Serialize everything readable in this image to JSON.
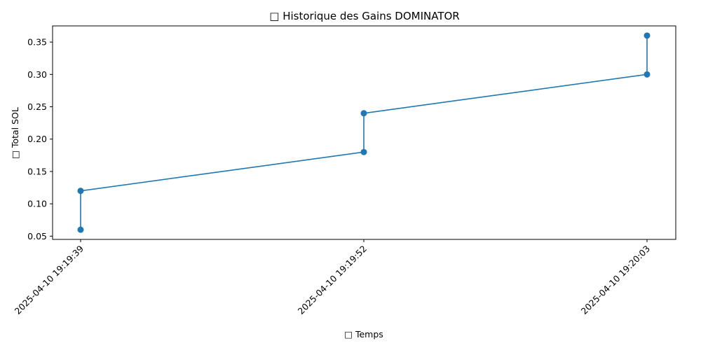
{
  "chart_data": {
    "type": "line",
    "title": "□ Historique des Gains DOMINATOR",
    "xlabel": "□ Temps",
    "ylabel": "□ Total SOL",
    "x_categories": [
      "2025-04-10 19:19:39",
      "2025-04-10 19:19:52",
      "2025-04-10 19:20:03"
    ],
    "series": [
      {
        "color": "#1f77b4",
        "marker": "circle",
        "points": [
          {
            "x": "2025-04-10 19:19:39",
            "y": 0.06
          },
          {
            "x": "2025-04-10 19:19:39",
            "y": 0.12
          },
          {
            "x": "2025-04-10 19:19:52",
            "y": 0.18
          },
          {
            "x": "2025-04-10 19:19:52",
            "y": 0.24
          },
          {
            "x": "2025-04-10 19:20:03",
            "y": 0.3
          },
          {
            "x": "2025-04-10 19:20:03",
            "y": 0.36
          }
        ]
      }
    ],
    "ylim": [
      0.045,
      0.375
    ],
    "yticks": [
      0.05,
      0.1,
      0.15,
      0.2,
      0.25,
      0.3,
      0.35
    ],
    "ytick_labels": [
      "0.05",
      "0.10",
      "0.15",
      "0.20",
      "0.25",
      "0.30",
      "0.35"
    ],
    "grid": false,
    "legend": "none"
  }
}
